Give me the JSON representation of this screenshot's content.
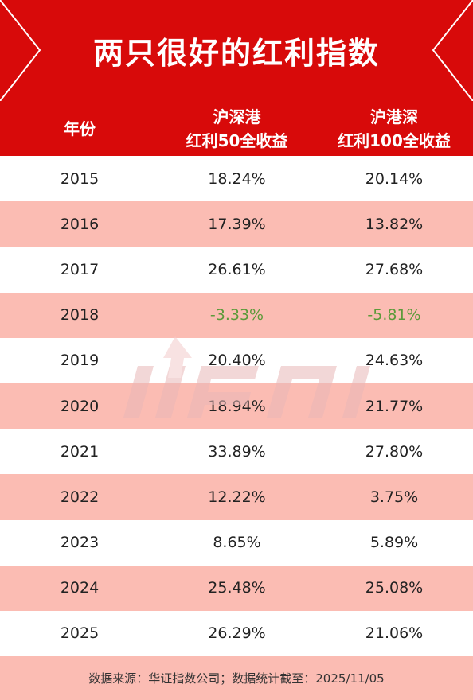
{
  "title": "两只很好的红利指数",
  "table": {
    "headers": [
      {
        "line1": "年份",
        "line2": ""
      },
      {
        "line1": "沪深港",
        "line2": "红利50全收益"
      },
      {
        "line1": "沪港深",
        "line2": "红利100全收益"
      }
    ],
    "rows": [
      [
        "2015",
        "18.24%",
        "20.14%"
      ],
      [
        "2016",
        "17.39%",
        "13.82%"
      ],
      [
        "2017",
        "26.61%",
        "27.68%"
      ],
      [
        "2018",
        "-3.33%",
        "-5.81%"
      ],
      [
        "2019",
        "20.40%",
        "24.63%"
      ],
      [
        "2020",
        "18.94%",
        "21.77%"
      ],
      [
        "2021",
        "33.89%",
        "27.80%"
      ],
      [
        "2022",
        "12.22%",
        "3.75%"
      ],
      [
        "2023",
        "8.65%",
        "5.89%"
      ],
      [
        "2024",
        "25.48%",
        "25.08%"
      ],
      [
        "2025",
        "26.29%",
        "21.06%"
      ]
    ]
  },
  "footer": "数据来源：华证指数公司；数据统计截至：2025/11/05",
  "colors": {
    "banner": "#d80a0a",
    "alt_row": "#fbbcb3",
    "negative": "#5c9a3a"
  }
}
